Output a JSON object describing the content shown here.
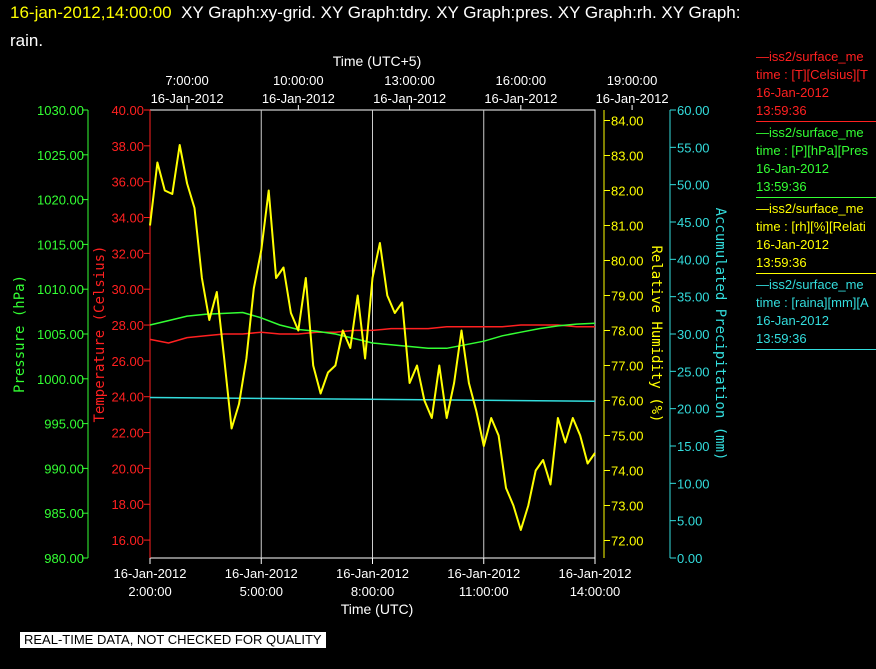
{
  "header": {
    "timestamp": "16-jan-2012,14:00:00",
    "title_rest": "XY Graph:xy-grid.  XY Graph:tdry.  XY Graph:pres.  XY Graph:rh.  XY Graph:",
    "title_line2": "rain."
  },
  "footer": {
    "quality_note": "REAL-TIME DATA, NOT CHECKED FOR QUALITY"
  },
  "legend": [
    {
      "line1": "—iss2/surface_me",
      "line2": "time : [T][Celsius][T",
      "line3": "16-Jan-2012",
      "line4": "13:59:36",
      "color": "#ff2020"
    },
    {
      "line1": "—iss2/surface_me",
      "line2": "time : [P][hPa][Pres",
      "line3": "16-Jan-2012",
      "line4": "13:59:36",
      "color": "#33ff33"
    },
    {
      "line1": "—iss2/surface_me",
      "line2": "time : [rh][%][Relati",
      "line3": "16-Jan-2012",
      "line4": "13:59:36",
      "color": "#ffff00"
    },
    {
      "line1": "—iss2/surface_me",
      "line2": "time : [raina][mm][A",
      "line3": "16-Jan-2012",
      "line4": "13:59:36",
      "color": "#33dddd"
    }
  ],
  "chart_data": {
    "type": "line",
    "xlabel_bottom": "Time (UTC)",
    "xlabel_top": "Time (UTC+5)",
    "x_range": [
      "2012-01-16 02:00:00",
      "2012-01-16 14:00:00"
    ],
    "x_ticks_bottom": [
      {
        "date": "16-Jan-2012",
        "time": "2:00:00"
      },
      {
        "date": "16-Jan-2012",
        "time": "5:00:00"
      },
      {
        "date": "16-Jan-2012",
        "time": "8:00:00"
      },
      {
        "date": "16-Jan-2012",
        "time": "11:00:00"
      },
      {
        "date": "16-Jan-2012",
        "time": "14:00:00"
      }
    ],
    "x_ticks_top": [
      {
        "date": "16-Jan-2012",
        "time": "7:00:00"
      },
      {
        "date": "16-Jan-2012",
        "time": "10:00:00"
      },
      {
        "date": "16-Jan-2012",
        "time": "13:00:00"
      },
      {
        "date": "16-Jan-2012",
        "time": "16:00:00"
      },
      {
        "date": "16-Jan-2012",
        "time": "19:00:00"
      }
    ],
    "grid": "vertical",
    "axes": {
      "pressure": {
        "label": "Pressure (hPa)",
        "range": [
          980,
          1030
        ],
        "ticks": [
          "980.00",
          "985.00",
          "990.00",
          "995.00",
          "1000.00",
          "1005.00",
          "1010.00",
          "1015.00",
          "1020.00",
          "1025.00",
          "1030.00"
        ],
        "color": "#33ff33",
        "side": "left-outer"
      },
      "temperature": {
        "label": "Temperature (Celsius)",
        "range": [
          15,
          40
        ],
        "ticks": [
          "16.00",
          "18.00",
          "20.00",
          "22.00",
          "24.00",
          "26.00",
          "28.00",
          "30.00",
          "32.00",
          "34.00",
          "36.00",
          "38.00",
          "40.00"
        ],
        "color": "#ff2020",
        "side": "left-inner"
      },
      "humidity": {
        "label": "Relative Humidity (%)",
        "range": [
          71.5,
          84.3
        ],
        "ticks": [
          "72.00",
          "73.00",
          "74.00",
          "75.00",
          "76.00",
          "77.00",
          "78.00",
          "79.00",
          "80.00",
          "81.00",
          "82.00",
          "83.00",
          "84.00"
        ],
        "color": "#ffff00",
        "side": "right-inner"
      },
      "precip": {
        "label": "Accumulated Precipitation (mm)",
        "range": [
          0,
          60
        ],
        "ticks": [
          "0.00",
          "5.00",
          "10.00",
          "15.00",
          "20.00",
          "25.00",
          "30.00",
          "35.00",
          "40.00",
          "45.00",
          "50.00",
          "55.00",
          "60.00"
        ],
        "color": "#33dddd",
        "side": "right-outer"
      }
    },
    "series": [
      {
        "key": "temperature",
        "color": "#ff2020",
        "x_hours_utc": [
          2.0,
          2.5,
          3.0,
          3.5,
          4.0,
          4.5,
          5.0,
          5.5,
          6.0,
          6.5,
          7.0,
          7.5,
          8.0,
          8.5,
          9.0,
          9.5,
          10.0,
          10.5,
          11.0,
          11.5,
          12.0,
          12.5,
          13.0,
          13.5,
          14.0
        ],
        "values": [
          27.2,
          27.0,
          27.3,
          27.4,
          27.5,
          27.5,
          27.6,
          27.5,
          27.5,
          27.6,
          27.6,
          27.7,
          27.7,
          27.8,
          27.8,
          27.8,
          27.9,
          27.9,
          27.9,
          27.9,
          28.0,
          28.0,
          28.0,
          27.9,
          27.9
        ]
      },
      {
        "key": "pressure",
        "color": "#33ff33",
        "x_hours_utc": [
          2.0,
          2.5,
          3.0,
          3.5,
          4.0,
          4.5,
          5.0,
          5.5,
          6.0,
          6.5,
          7.0,
          7.5,
          8.0,
          8.5,
          9.0,
          9.5,
          10.0,
          10.5,
          11.0,
          11.5,
          12.0,
          12.5,
          13.0,
          13.5,
          14.0
        ],
        "values": [
          1006.0,
          1006.5,
          1007.0,
          1007.2,
          1007.3,
          1007.4,
          1006.8,
          1006.0,
          1005.5,
          1005.3,
          1005.0,
          1004.5,
          1004.0,
          1003.8,
          1003.6,
          1003.4,
          1003.4,
          1003.8,
          1004.2,
          1004.8,
          1005.2,
          1005.6,
          1005.9,
          1006.1,
          1006.2
        ]
      },
      {
        "key": "precip",
        "color": "#33dddd",
        "x_hours_utc": [
          2.0,
          14.0
        ],
        "values": [
          21.5,
          21.0
        ]
      },
      {
        "key": "humidity",
        "color": "#ffff00",
        "x_hours_utc": [
          2.0,
          2.2,
          2.4,
          2.6,
          2.8,
          3.0,
          3.2,
          3.4,
          3.6,
          3.8,
          4.0,
          4.2,
          4.4,
          4.6,
          4.8,
          5.0,
          5.2,
          5.4,
          5.6,
          5.8,
          6.0,
          6.2,
          6.4,
          6.6,
          6.8,
          7.0,
          7.2,
          7.4,
          7.6,
          7.8,
          8.0,
          8.2,
          8.4,
          8.6,
          8.8,
          9.0,
          9.2,
          9.4,
          9.6,
          9.8,
          10.0,
          10.2,
          10.4,
          10.6,
          10.8,
          11.0,
          11.2,
          11.4,
          11.6,
          11.8,
          12.0,
          12.2,
          12.4,
          12.6,
          12.8,
          13.0,
          13.2,
          13.4,
          13.6,
          13.8,
          14.0
        ],
        "values": [
          81.0,
          82.8,
          82.0,
          81.9,
          83.3,
          82.2,
          81.5,
          79.5,
          78.3,
          79.1,
          77.2,
          75.2,
          75.9,
          77.2,
          79.2,
          80.3,
          82.0,
          79.5,
          79.8,
          78.5,
          78.0,
          79.5,
          77.0,
          76.2,
          76.8,
          77.0,
          78.0,
          77.5,
          79.0,
          77.2,
          79.5,
          80.5,
          79.0,
          78.5,
          78.8,
          76.5,
          77.0,
          76.0,
          75.5,
          77.0,
          75.5,
          76.5,
          78.0,
          76.5,
          75.7,
          74.7,
          75.5,
          75.0,
          73.5,
          73.0,
          72.3,
          73.0,
          74.0,
          74.3,
          73.6,
          75.5,
          74.8,
          75.5,
          75.0,
          74.2,
          74.5
        ]
      }
    ]
  }
}
